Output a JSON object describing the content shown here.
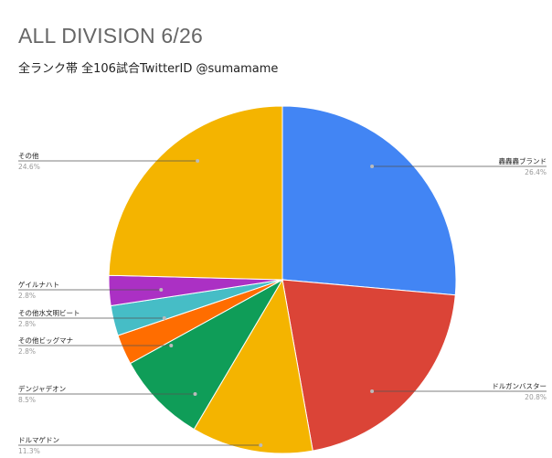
{
  "chart_data": {
    "type": "pie",
    "title": "ALL DIVISION 6/26",
    "subtitle": "全ランク帯 全106試合TwitterID @sumamame",
    "slices": [
      {
        "label": "轟轟轟ブランド",
        "percent_label": "26.4%",
        "value": 26.4,
        "color": "#4285f4"
      },
      {
        "label": "ドルガンバスター",
        "percent_label": "20.8%",
        "value": 20.8,
        "color": "#db4437"
      },
      {
        "label": "ドルマゲドン",
        "percent_label": "11.3%",
        "value": 11.3,
        "color": "#f4b400"
      },
      {
        "label": "デンジャデオン",
        "percent_label": "8.5%",
        "value": 8.5,
        "color": "#0f9d58"
      },
      {
        "label": "その他ビッグマナ",
        "percent_label": "2.8%",
        "value": 2.8,
        "color": "#ff6d00"
      },
      {
        "label": "その他水文明ビート",
        "percent_label": "2.8%",
        "value": 2.8,
        "color": "#46bdc6"
      },
      {
        "label": "ゲイルナハト",
        "percent_label": "2.8%",
        "value": 2.8,
        "color": "#ab30c4"
      },
      {
        "label": "その他",
        "percent_label": "24.6%",
        "value": 24.6,
        "color": "#f4b400"
      }
    ]
  }
}
